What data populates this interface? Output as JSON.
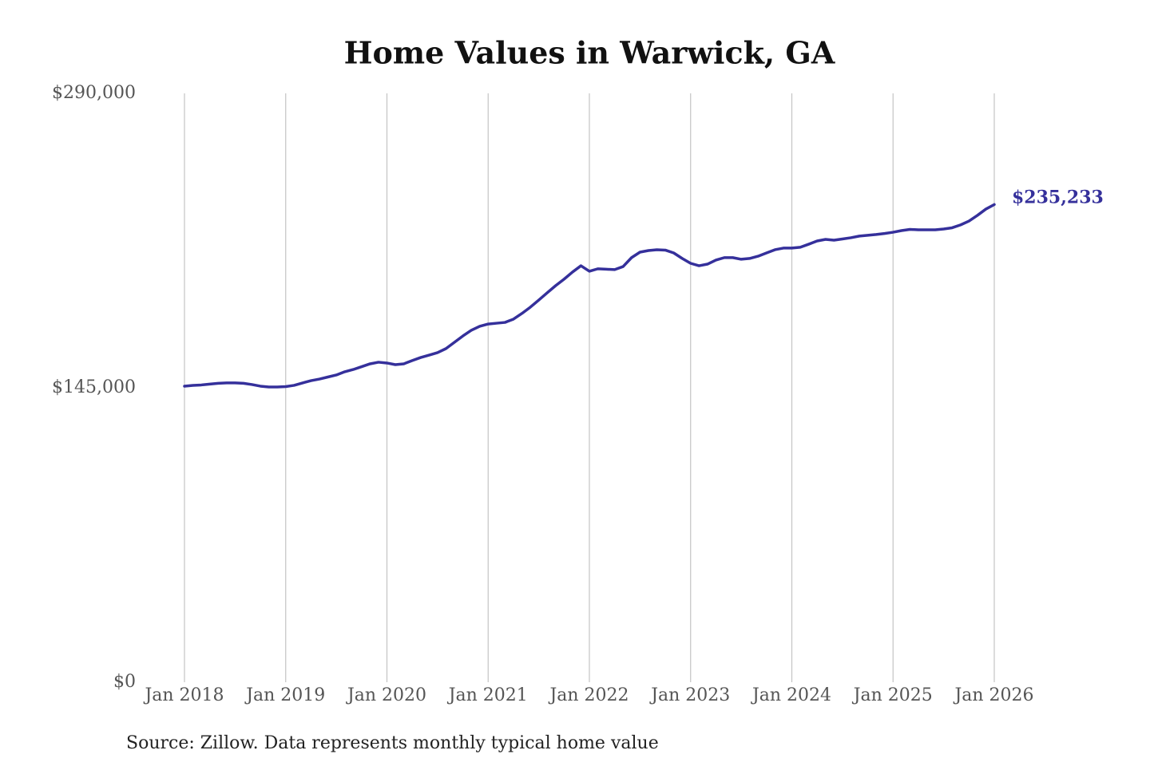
{
  "chart_data": {
    "type": "line",
    "title": "Home Values in Warwick, GA",
    "source": "Source: Zillow. Data represents monthly typical home value",
    "x": [
      "2018-01",
      "2018-02",
      "2018-03",
      "2018-04",
      "2018-05",
      "2018-06",
      "2018-07",
      "2018-08",
      "2018-09",
      "2018-10",
      "2018-11",
      "2018-12",
      "2019-01",
      "2019-02",
      "2019-03",
      "2019-04",
      "2019-05",
      "2019-06",
      "2019-07",
      "2019-08",
      "2019-09",
      "2019-10",
      "2019-11",
      "2019-12",
      "2020-01",
      "2020-02",
      "2020-03",
      "2020-04",
      "2020-05",
      "2020-06",
      "2020-07",
      "2020-08",
      "2020-09",
      "2020-10",
      "2020-11",
      "2020-12",
      "2021-01",
      "2021-02",
      "2021-03",
      "2021-04",
      "2021-05",
      "2021-06",
      "2021-07",
      "2021-08",
      "2021-09",
      "2021-10",
      "2021-11",
      "2021-12",
      "2022-01",
      "2022-02",
      "2022-03",
      "2022-04",
      "2022-05",
      "2022-06",
      "2022-07",
      "2022-08",
      "2022-09",
      "2022-10",
      "2022-11",
      "2022-12",
      "2023-01",
      "2023-02",
      "2023-03",
      "2023-04",
      "2023-05",
      "2023-06",
      "2023-07",
      "2023-08",
      "2023-09",
      "2023-10",
      "2023-11",
      "2023-12",
      "2024-01",
      "2024-02",
      "2024-03",
      "2024-04",
      "2024-05",
      "2024-06",
      "2024-07",
      "2024-08",
      "2024-09",
      "2024-10",
      "2024-11",
      "2024-12",
      "2025-01",
      "2025-02",
      "2025-03",
      "2025-04",
      "2025-05",
      "2025-06",
      "2025-07",
      "2025-08",
      "2025-09",
      "2025-10",
      "2025-11",
      "2025-12",
      "2026-01"
    ],
    "series": [
      {
        "name": "Home value",
        "color": "#35309b",
        "values": [
          145800,
          146200,
          146400,
          146800,
          147200,
          147400,
          147400,
          147200,
          146600,
          145800,
          145400,
          145400,
          145600,
          146200,
          147400,
          148500,
          149300,
          150300,
          151300,
          152900,
          154000,
          155400,
          156800,
          157600,
          157200,
          156400,
          156800,
          158400,
          159900,
          161100,
          162300,
          164300,
          167400,
          170500,
          173300,
          175300,
          176400,
          176800,
          177200,
          178800,
          181600,
          184700,
          188200,
          191800,
          195300,
          198500,
          202000,
          205100,
          202400,
          203600,
          203400,
          203200,
          204700,
          209100,
          211800,
          212600,
          213000,
          212800,
          211400,
          208700,
          206300,
          205100,
          205900,
          207900,
          209100,
          209100,
          208300,
          208700,
          209800,
          211400,
          213000,
          213800,
          213800,
          214200,
          215700,
          217300,
          218100,
          217700,
          218300,
          218900,
          219700,
          220100,
          220500,
          221000,
          221600,
          222400,
          223000,
          222800,
          222800,
          222800,
          223200,
          223800,
          225200,
          227100,
          229900,
          233000,
          235233
        ],
        "value_labels": [
          null,
          null,
          null,
          null,
          null,
          null,
          null,
          null,
          null,
          null,
          null,
          null,
          null,
          null,
          null,
          null,
          null,
          null,
          null,
          null,
          null,
          null,
          null,
          null,
          null,
          null,
          null,
          null,
          null,
          null,
          null,
          null,
          null,
          null,
          null,
          null,
          null,
          null,
          null,
          null,
          null,
          null,
          null,
          null,
          null,
          null,
          null,
          null,
          null,
          null,
          null,
          null,
          null,
          null,
          null,
          null,
          null,
          null,
          null,
          null,
          null,
          null,
          null,
          null,
          null,
          null,
          null,
          null,
          null,
          null,
          null,
          null,
          null,
          null,
          null,
          null,
          null,
          null,
          null,
          null,
          null,
          null,
          null,
          null,
          null,
          null,
          null,
          null,
          null,
          null,
          null,
          null,
          null,
          null,
          null,
          null,
          "$235,233"
        ]
      }
    ],
    "xlim": [
      "2018-01",
      "2026-01"
    ],
    "xticks": [
      {
        "value": "2018-01",
        "label": "Jan 2018"
      },
      {
        "value": "2019-01",
        "label": "Jan 2019"
      },
      {
        "value": "2020-01",
        "label": "Jan 2020"
      },
      {
        "value": "2021-01",
        "label": "Jan 2021"
      },
      {
        "value": "2022-01",
        "label": "Jan 2022"
      },
      {
        "value": "2023-01",
        "label": "Jan 2023"
      },
      {
        "value": "2024-01",
        "label": "Jan 2024"
      },
      {
        "value": "2025-01",
        "label": "Jan 2025"
      },
      {
        "value": "2026-01",
        "label": "Jan 2026"
      }
    ],
    "ylim": [
      0,
      290000
    ],
    "yticks": [
      {
        "value": 0,
        "label": "$0"
      },
      {
        "value": 145000,
        "label": "$145,000"
      },
      {
        "value": 290000,
        "label": "$290,000"
      }
    ],
    "grid": "x"
  }
}
